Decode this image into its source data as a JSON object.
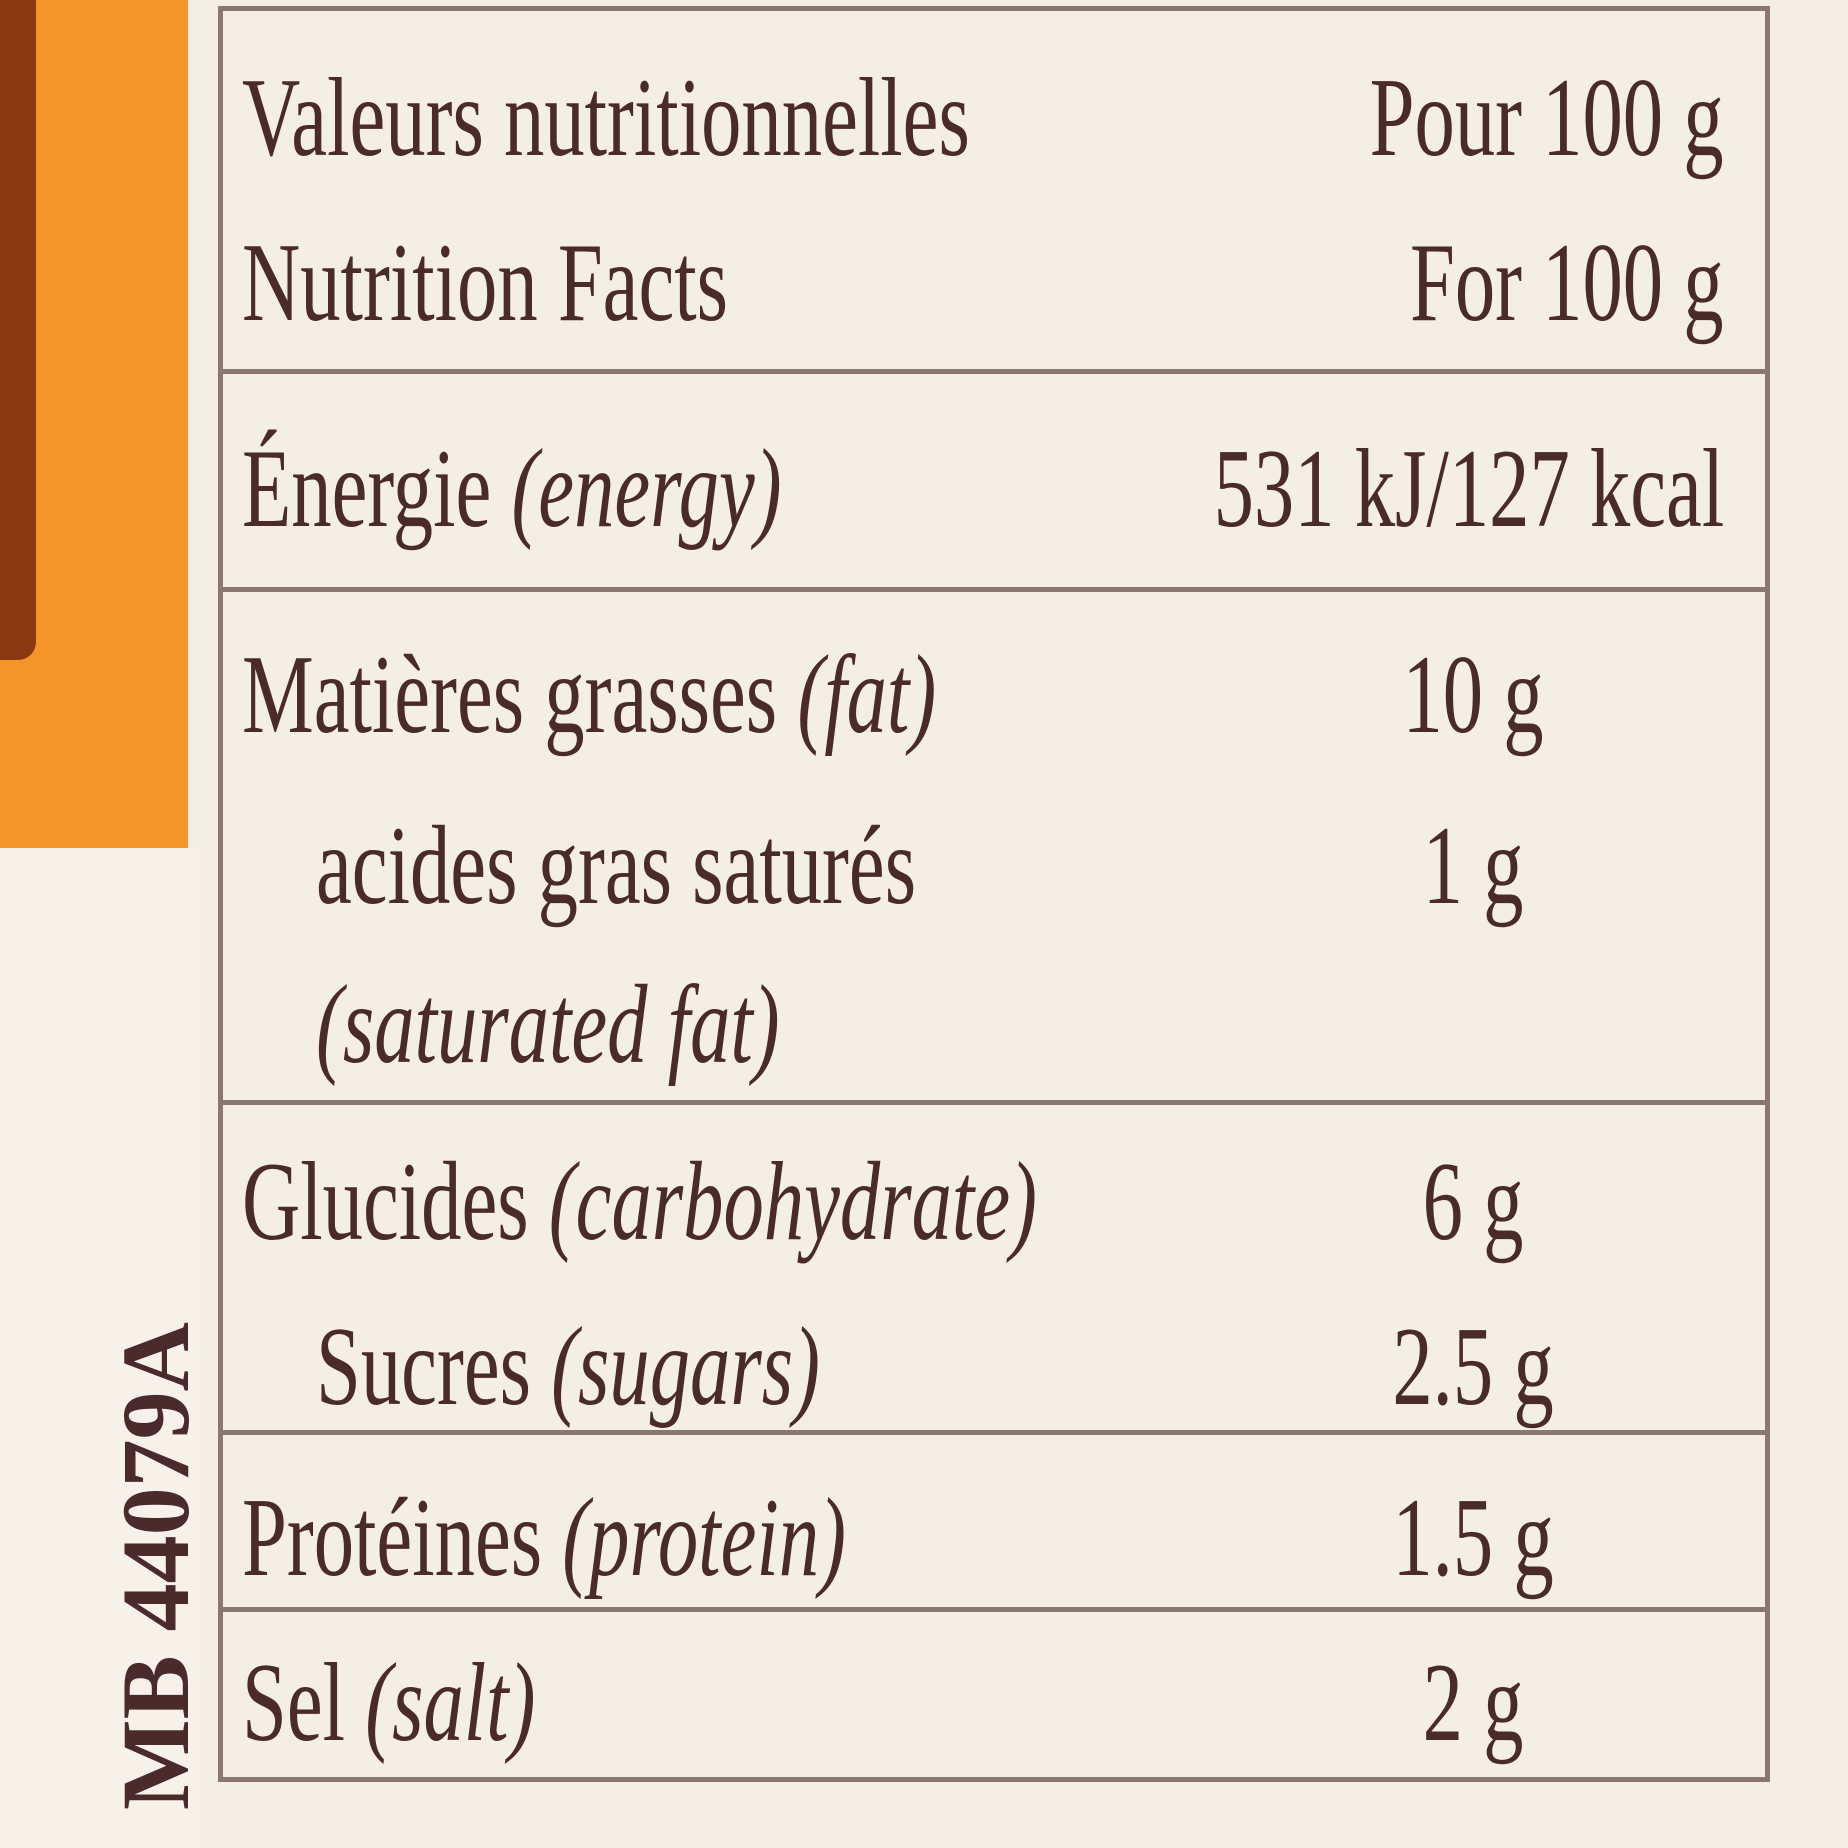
{
  "side_code": "MB 44079A",
  "header": {
    "title_fr": "Valeurs nutritionnelles",
    "per_fr": "Pour 100 g",
    "title_en": "Nutrition Facts",
    "per_en": "For 100 g"
  },
  "rows": [
    {
      "label": "Énergie",
      "label_en": "(energy)",
      "value": "531 kJ/127 kcal"
    },
    {
      "label": "Matières grasses",
      "label_en": "(fat)",
      "value": "10 g"
    },
    {
      "label": "acides gras saturés",
      "label_en": "(saturated fat)",
      "value": "1 g"
    },
    {
      "label": "Glucides",
      "label_en": "(carbohydrate)",
      "value": "6 g"
    },
    {
      "label": "Sucres",
      "label_en": "(sugars)",
      "value": "2.5 g"
    },
    {
      "label": "Protéines",
      "label_en": "(protein)",
      "value": "1.5 g"
    },
    {
      "label": "Sel",
      "label_en": "(salt)",
      "value": "2 g"
    }
  ]
}
